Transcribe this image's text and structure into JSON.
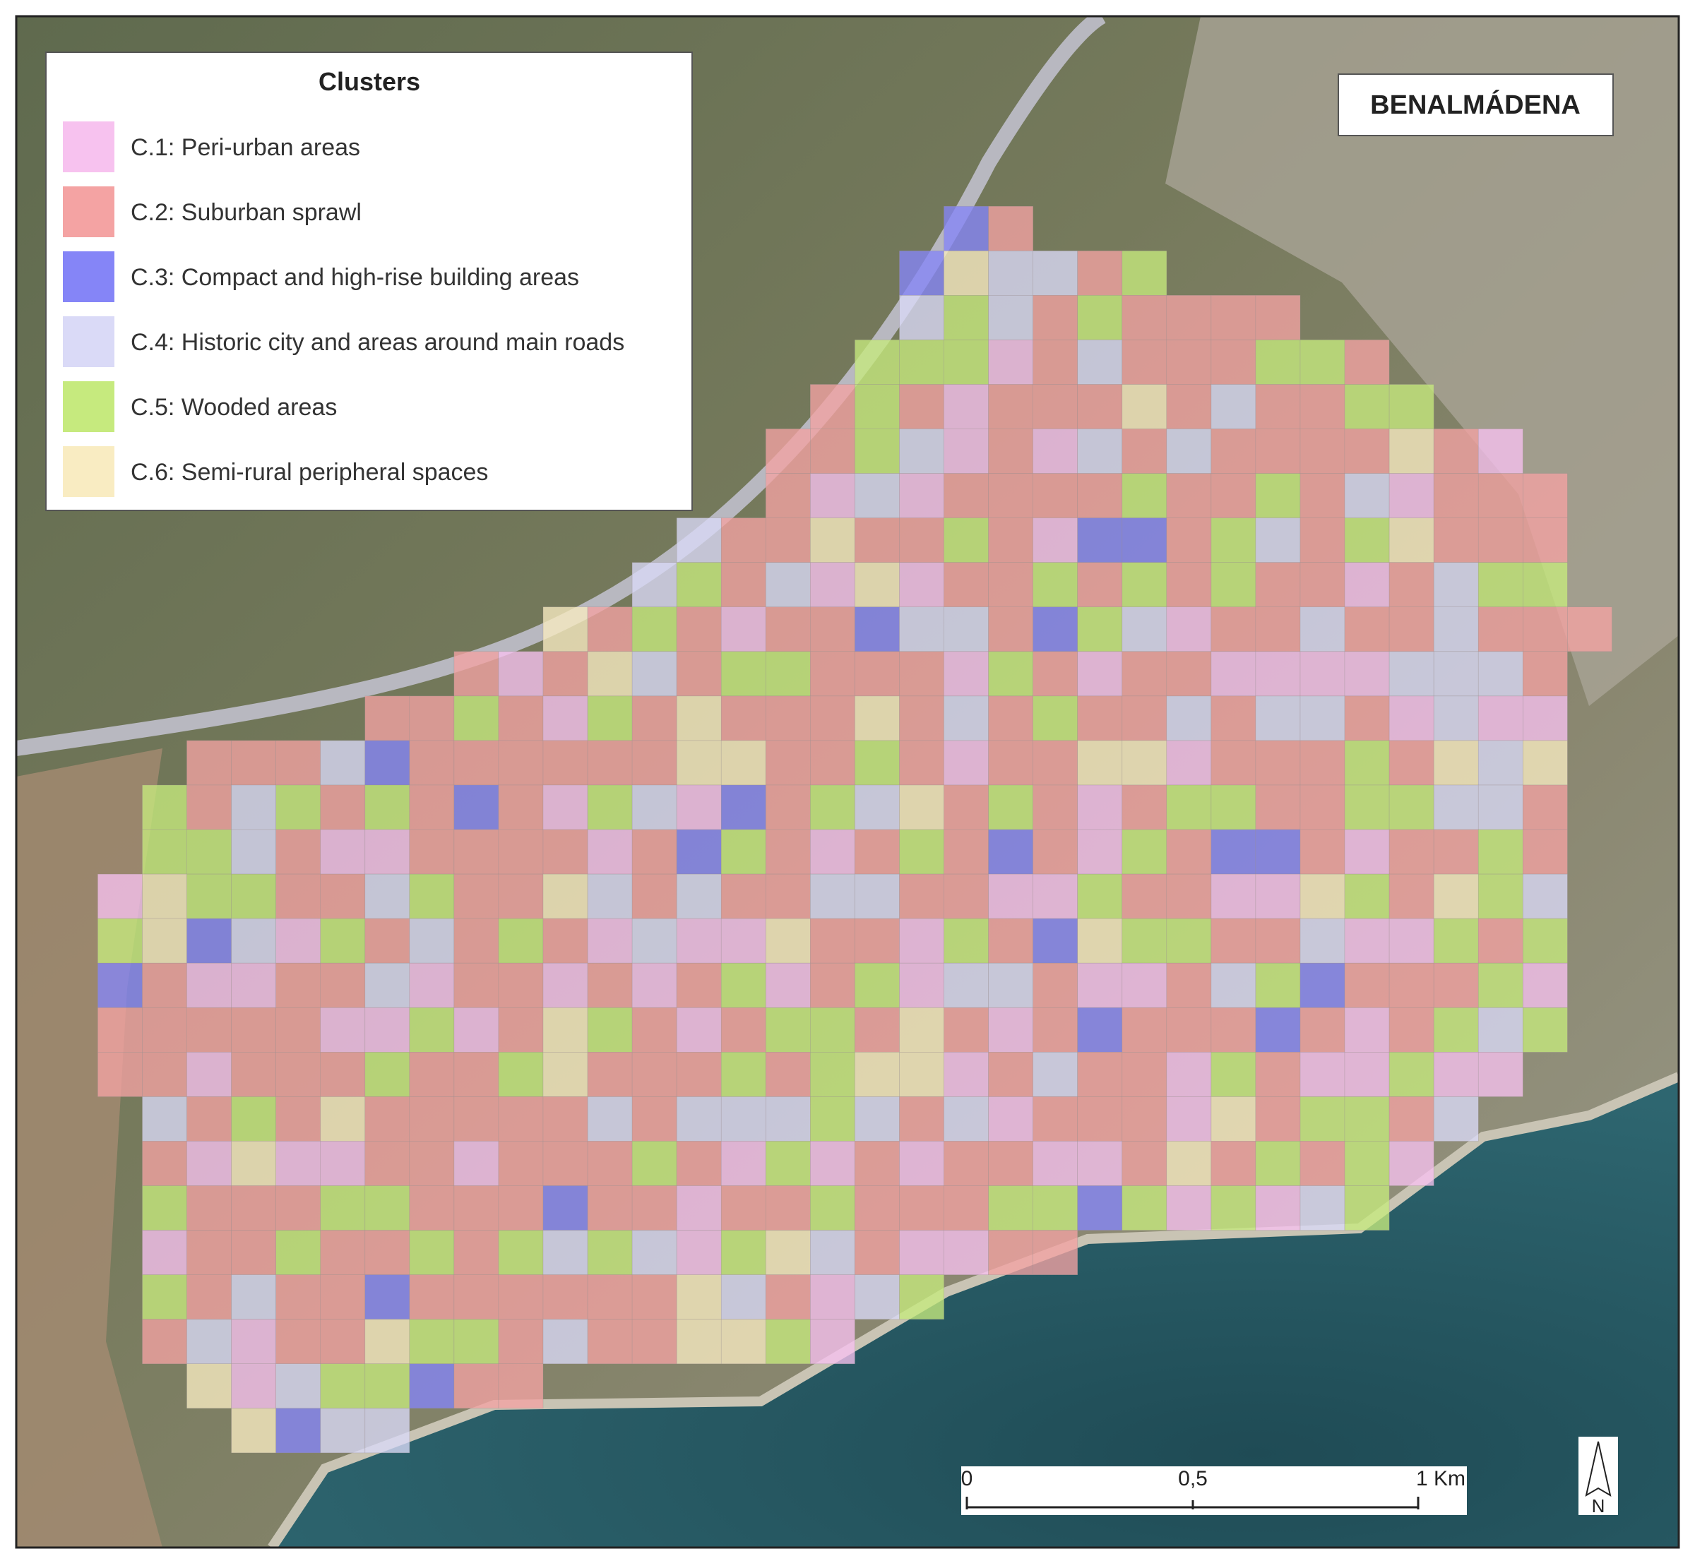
{
  "legend": {
    "title": "Clusters",
    "items": [
      {
        "label": "C.1: Peri-urban areas",
        "color": "#f7c2ef"
      },
      {
        "label": "C.2: Suburban sprawl",
        "color": "#f4a3a3"
      },
      {
        "label": "C.3: Compact and high-rise building areas",
        "color": "#8585f7"
      },
      {
        "label": "C.4: Historic city and areas around main roads",
        "color": "#dadaf7"
      },
      {
        "label": "C.5: Wooded areas",
        "color": "#c6ea7e"
      },
      {
        "label": "C.6: Semi-rural peripheral spaces",
        "color": "#f9ecc2"
      }
    ]
  },
  "place_label": "BENALMÁDENA",
  "scale_bar": {
    "labels": [
      "0",
      "0,5",
      "1 Km"
    ]
  },
  "north_arrow": "N"
}
